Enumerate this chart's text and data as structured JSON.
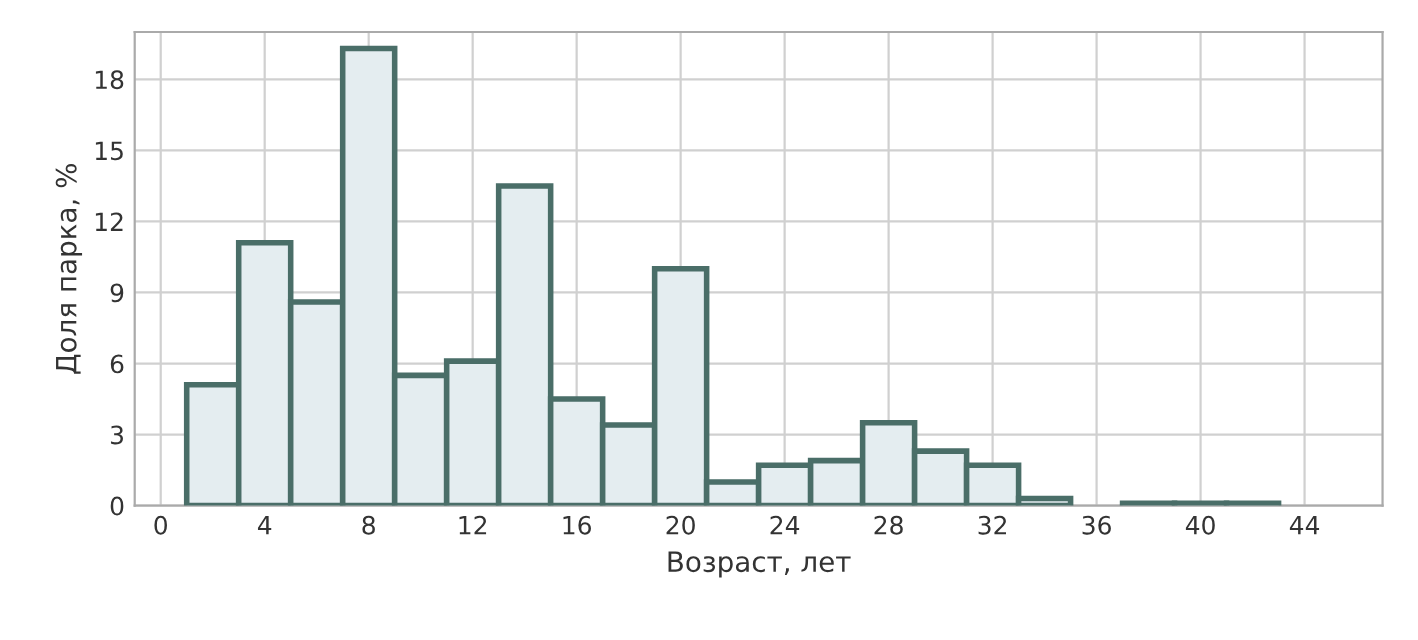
{
  "chart_data": {
    "type": "histogram",
    "xlabel": "Возраст, лет",
    "ylabel": "Доля парка, %",
    "bins": [
      1,
      3,
      5,
      7,
      9,
      11,
      13,
      15,
      17,
      19,
      21,
      23,
      25,
      27,
      29,
      31,
      33,
      35,
      37,
      39,
      41,
      43
    ],
    "values": [
      5.1,
      11.1,
      8.6,
      19.3,
      5.5,
      6.1,
      13.5,
      4.5,
      3.4,
      10.0,
      1.0,
      1.7,
      1.9,
      3.5,
      2.3,
      1.7,
      0.3,
      null,
      0.1,
      0.1,
      0.1
    ],
    "color": "#e4edf0",
    "xlim": [
      -1,
      47
    ],
    "xticks": [
      0,
      4,
      8,
      12,
      16,
      20,
      24,
      28,
      32,
      36,
      40,
      44
    ],
    "ylim": [
      0,
      20
    ],
    "yticks": [
      0,
      3,
      6,
      9,
      12,
      15,
      18
    ],
    "grid": true
  }
}
